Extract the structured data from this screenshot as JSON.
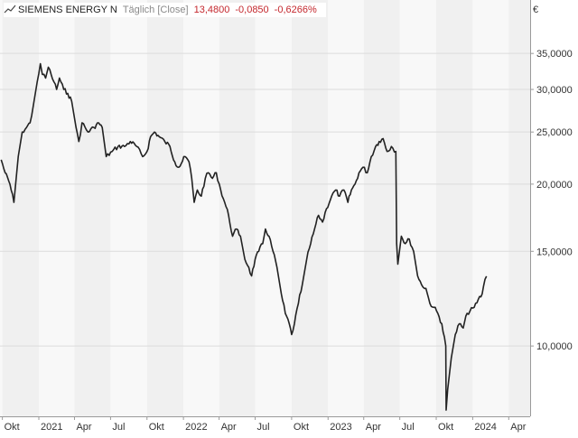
{
  "legend": {
    "name": "SIEMENS ENERGY N",
    "mode": "Täglich [Close]",
    "last": "13,4800",
    "change": "-0,0850",
    "change_pct": "-0,6266%"
  },
  "colors": {
    "line": "#222222",
    "band_light": "#f8f8f8",
    "band_dark": "#f0f0f0",
    "grid": "#dcdcdc",
    "axis": "#9a9a9a",
    "negative": "#c4272d"
  },
  "chart_data": {
    "type": "line",
    "title": "SIEMENS ENERGY N",
    "xlabel": "",
    "ylabel": "",
    "y_unit_label": "€",
    "y_scale": "log",
    "ylim": [
      7.4,
      44
    ],
    "xlim": [
      "2020-09-25",
      "2024-05-25"
    ],
    "grid": true,
    "y_ticks": [
      {
        "value": 10,
        "label": "10,0000"
      },
      {
        "value": 15,
        "label": "15,0000"
      },
      {
        "value": 20,
        "label": "20,0000"
      },
      {
        "value": 25,
        "label": "25,0000"
      },
      {
        "value": 30,
        "label": "30,0000"
      },
      {
        "value": 35,
        "label": "35,0000"
      }
    ],
    "x_ticks": [
      {
        "date": "2020-10-01",
        "label": "Okt"
      },
      {
        "date": "2021-01-01",
        "label": "2021"
      },
      {
        "date": "2021-04-01",
        "label": "Apr"
      },
      {
        "date": "2021-07-01",
        "label": "Jul"
      },
      {
        "date": "2021-10-01",
        "label": "Okt"
      },
      {
        "date": "2022-01-01",
        "label": "2022"
      },
      {
        "date": "2022-04-01",
        "label": "Apr"
      },
      {
        "date": "2022-07-01",
        "label": "Jul"
      },
      {
        "date": "2022-10-01",
        "label": "Okt"
      },
      {
        "date": "2023-01-01",
        "label": "2023"
      },
      {
        "date": "2023-04-01",
        "label": "Apr"
      },
      {
        "date": "2023-07-01",
        "label": "Jul"
      },
      {
        "date": "2023-10-01",
        "label": "Okt"
      },
      {
        "date": "2024-01-01",
        "label": "2024"
      },
      {
        "date": "2024-04-01",
        "label": "Apr"
      }
    ],
    "series": [
      {
        "name": "SIEMENS ENERGY N",
        "points": [
          [
            "2020-09-28",
            22.2
          ],
          [
            "2020-10-08",
            21.0
          ],
          [
            "2020-10-20",
            20.0
          ],
          [
            "2020-10-30",
            18.5
          ],
          [
            "2020-11-10",
            22.5
          ],
          [
            "2020-11-20",
            25.0
          ],
          [
            "2020-12-01",
            25.5
          ],
          [
            "2020-12-10",
            26.0
          ],
          [
            "2020-12-18",
            28.0
          ],
          [
            "2020-12-28",
            31.0
          ],
          [
            "2021-01-05",
            33.5
          ],
          [
            "2021-01-10",
            32.0
          ],
          [
            "2021-01-18",
            31.5
          ],
          [
            "2021-01-25",
            33.0
          ],
          [
            "2021-02-01",
            32.0
          ],
          [
            "2021-02-08",
            31.0
          ],
          [
            "2021-02-15",
            30.0
          ],
          [
            "2021-02-22",
            31.5
          ],
          [
            "2021-03-05",
            30.0
          ],
          [
            "2021-03-15",
            29.5
          ],
          [
            "2021-03-25",
            28.5
          ],
          [
            "2021-04-05",
            25.5
          ],
          [
            "2021-04-12",
            24.0
          ],
          [
            "2021-04-20",
            26.0
          ],
          [
            "2021-05-05",
            25.0
          ],
          [
            "2021-05-20",
            25.5
          ],
          [
            "2021-06-01",
            26.0
          ],
          [
            "2021-06-10",
            25.5
          ],
          [
            "2021-06-20",
            22.5
          ],
          [
            "2021-07-05",
            23.0
          ],
          [
            "2021-07-20",
            23.5
          ],
          [
            "2021-08-05",
            23.5
          ],
          [
            "2021-08-20",
            24.0
          ],
          [
            "2021-09-05",
            23.5
          ],
          [
            "2021-09-20",
            22.5
          ],
          [
            "2021-10-01",
            23.0
          ],
          [
            "2021-10-10",
            24.5
          ],
          [
            "2021-10-20",
            25.0
          ],
          [
            "2021-11-01",
            24.5
          ],
          [
            "2021-11-15",
            24.0
          ],
          [
            "2021-11-28",
            23.5
          ],
          [
            "2021-12-10",
            22.0
          ],
          [
            "2021-12-20",
            21.5
          ],
          [
            "2022-01-05",
            22.5
          ],
          [
            "2022-01-15",
            22.0
          ],
          [
            "2022-01-22",
            20.5
          ],
          [
            "2022-01-28",
            18.5
          ],
          [
            "2022-02-05",
            19.5
          ],
          [
            "2022-02-15",
            19.0
          ],
          [
            "2022-02-25",
            20.5
          ],
          [
            "2022-03-05",
            21.0
          ],
          [
            "2022-03-15",
            20.5
          ],
          [
            "2022-03-25",
            21.0
          ],
          [
            "2022-04-05",
            19.5
          ],
          [
            "2022-04-15",
            18.5
          ],
          [
            "2022-04-25",
            17.5
          ],
          [
            "2022-05-05",
            16.0
          ],
          [
            "2022-05-15",
            16.5
          ],
          [
            "2022-05-25",
            16.0
          ],
          [
            "2022-06-05",
            14.5
          ],
          [
            "2022-06-15",
            14.0
          ],
          [
            "2022-06-22",
            13.5
          ],
          [
            "2022-07-01",
            14.5
          ],
          [
            "2022-07-10",
            15.0
          ],
          [
            "2022-07-20",
            15.5
          ],
          [
            "2022-07-27",
            16.5
          ],
          [
            "2022-08-05",
            16.0
          ],
          [
            "2022-08-15",
            15.0
          ],
          [
            "2022-08-25",
            14.0
          ],
          [
            "2022-09-05",
            12.5
          ],
          [
            "2022-09-15",
            11.5
          ],
          [
            "2022-09-25",
            11.0
          ],
          [
            "2022-10-01",
            10.5
          ],
          [
            "2022-10-08",
            11.0
          ],
          [
            "2022-10-18",
            12.0
          ],
          [
            "2022-10-28",
            13.0
          ],
          [
            "2022-11-08",
            14.5
          ],
          [
            "2022-11-18",
            15.5
          ],
          [
            "2022-11-28",
            16.5
          ],
          [
            "2022-12-08",
            17.5
          ],
          [
            "2022-12-18",
            17.0
          ],
          [
            "2022-12-28",
            18.0
          ],
          [
            "2023-01-10",
            19.0
          ],
          [
            "2023-01-20",
            19.5
          ],
          [
            "2023-01-30",
            19.0
          ],
          [
            "2023-02-10",
            19.5
          ],
          [
            "2023-02-20",
            18.5
          ],
          [
            "2023-03-01",
            19.5
          ],
          [
            "2023-03-10",
            20.0
          ],
          [
            "2023-03-20",
            21.0
          ],
          [
            "2023-03-30",
            21.5
          ],
          [
            "2023-04-10",
            21.0
          ],
          [
            "2023-04-20",
            22.5
          ],
          [
            "2023-05-01",
            23.5
          ],
          [
            "2023-05-10",
            24.0
          ],
          [
            "2023-05-20",
            24.3
          ],
          [
            "2023-05-30",
            23.0
          ],
          [
            "2023-06-10",
            23.5
          ],
          [
            "2023-06-21",
            23.0
          ],
          [
            "2023-06-23",
            15.5
          ],
          [
            "2023-06-26",
            14.2
          ],
          [
            "2023-07-05",
            16.0
          ],
          [
            "2023-07-15",
            15.5
          ],
          [
            "2023-07-25",
            15.8
          ],
          [
            "2023-08-05",
            15.0
          ],
          [
            "2023-08-15",
            13.5
          ],
          [
            "2023-08-25",
            13.0
          ],
          [
            "2023-09-05",
            12.8
          ],
          [
            "2023-09-15",
            12.0
          ],
          [
            "2023-09-25",
            11.8
          ],
          [
            "2023-10-05",
            11.5
          ],
          [
            "2023-10-15",
            11.0
          ],
          [
            "2023-10-25",
            10.0
          ],
          [
            "2023-10-26",
            7.6
          ],
          [
            "2023-10-30",
            8.3
          ],
          [
            "2023-11-08",
            9.5
          ],
          [
            "2023-11-18",
            10.5
          ],
          [
            "2023-11-28",
            11.0
          ],
          [
            "2023-12-08",
            10.8
          ],
          [
            "2023-12-18",
            11.5
          ],
          [
            "2024-01-05",
            11.8
          ],
          [
            "2024-01-15",
            12.2
          ],
          [
            "2024-01-25",
            12.5
          ],
          [
            "2024-02-01",
            13.3
          ],
          [
            "2024-02-05",
            13.48
          ]
        ]
      }
    ]
  }
}
